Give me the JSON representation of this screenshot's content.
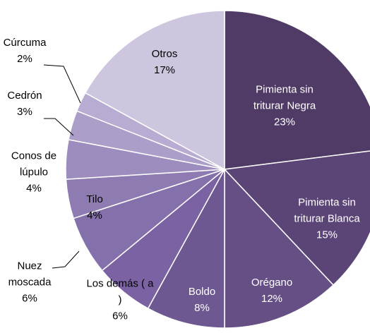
{
  "chart_data": {
    "type": "pie",
    "categories": [
      "Pimienta sin triturar Negra",
      "Pimienta sin triturar Blanca",
      "Orégano",
      "Boldo",
      "Los demás ( a )",
      "Nuez moscada",
      "Tilo",
      "Conos de lúpulo",
      "Cedrón",
      "Cúrcuma",
      "Otros"
    ],
    "values": [
      23,
      15,
      12,
      8,
      6,
      6,
      4,
      4,
      3,
      2,
      17
    ],
    "value_labels": [
      "23%",
      "15%",
      "12%",
      "8%",
      "6%",
      "6%",
      "4%",
      "4%",
      "3%",
      "2%",
      "17%"
    ],
    "colors": [
      "#4f3b66",
      "#5b4577",
      "#654f85",
      "#6d5892",
      "#7a62a3",
      "#8470ab",
      "#8d7bb2",
      "#9d8dbf",
      "#ab9ec9",
      "#b8acd2",
      "#cdc6de"
    ]
  }
}
